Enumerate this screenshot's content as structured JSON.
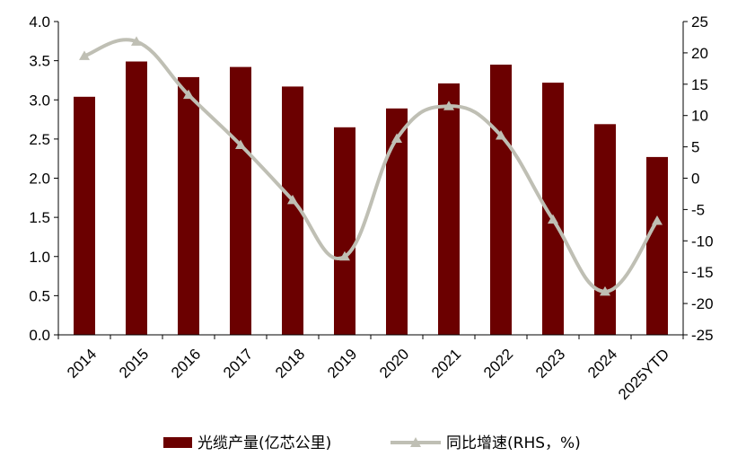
{
  "chart_data": {
    "type": "bar",
    "title": "",
    "categories": [
      "2014",
      "2015",
      "2016",
      "2017",
      "2018",
      "2019",
      "2020",
      "2021",
      "2022",
      "2023",
      "2024",
      "2025YTD"
    ],
    "series": [
      {
        "name": "光缆产量(亿芯公里)",
        "type": "bar",
        "axis": "left",
        "color": "#6B0000",
        "values": [
          3.04,
          3.49,
          3.29,
          3.42,
          3.17,
          2.65,
          2.89,
          3.21,
          3.45,
          3.22,
          2.69,
          2.27
        ]
      },
      {
        "name": "同比增速(RHS，%)",
        "type": "line",
        "axis": "right",
        "color": "#BFBFB4",
        "marker": "triangle",
        "values": [
          19.5,
          21.8,
          13.3,
          5.3,
          -3.5,
          -12.5,
          6.3,
          11.5,
          6.8,
          -6.6,
          -18.1,
          -6.8
        ]
      }
    ],
    "y_left": {
      "min": 0,
      "max": 4,
      "step": 0.5,
      "ticks": [
        "0.0",
        "0.5",
        "1.0",
        "1.5",
        "2.0",
        "2.5",
        "3.0",
        "3.5",
        "4.0"
      ]
    },
    "y_right": {
      "min": -25,
      "max": 25,
      "step": 5,
      "ticks": [
        "-25",
        "-20",
        "-15",
        "-10",
        "-5",
        "0",
        "5",
        "10",
        "15",
        "20",
        "25"
      ]
    },
    "legend_position": "bottom",
    "grid": false
  }
}
